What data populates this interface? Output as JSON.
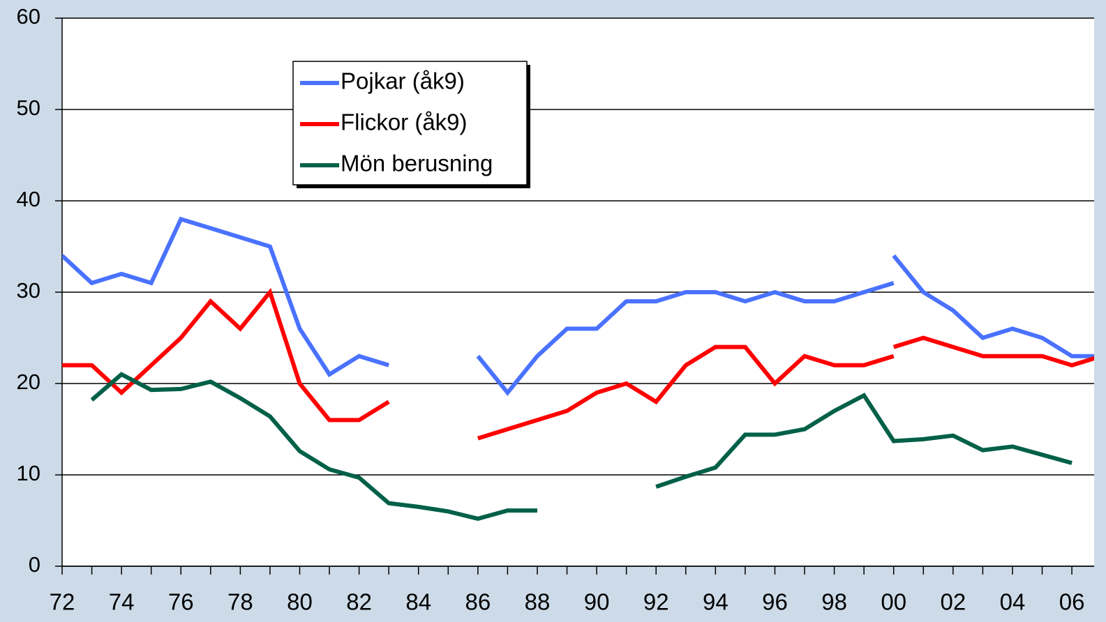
{
  "chart_data": {
    "type": "line",
    "xlim": [
      1972,
      2006.75
    ],
    "ylim": [
      0,
      60
    ],
    "yticks": [
      0,
      10,
      20,
      30,
      40,
      50,
      60
    ],
    "xticks": [
      {
        "value": 1972,
        "label": "72"
      },
      {
        "value": 1974,
        "label": "74"
      },
      {
        "value": 1976,
        "label": "76"
      },
      {
        "value": 1978,
        "label": "78"
      },
      {
        "value": 1980,
        "label": "80"
      },
      {
        "value": 1982,
        "label": "82"
      },
      {
        "value": 1984,
        "label": "84"
      },
      {
        "value": 1986,
        "label": "86"
      },
      {
        "value": 1988,
        "label": "88"
      },
      {
        "value": 1990,
        "label": "90"
      },
      {
        "value": 1992,
        "label": "92"
      },
      {
        "value": 1994,
        "label": "94"
      },
      {
        "value": 1996,
        "label": "96"
      },
      {
        "value": 1998,
        "label": "98"
      },
      {
        "value": 2000,
        "label": "00"
      },
      {
        "value": 2002,
        "label": "02"
      },
      {
        "value": 2004,
        "label": "04"
      },
      {
        "value": 2006,
        "label": "06"
      }
    ],
    "xminor": [
      1973,
      1975,
      1977,
      1979,
      1981,
      1983,
      1985,
      1987,
      1989,
      1991,
      1993,
      1995,
      1997,
      1999,
      2001,
      2003,
      2005
    ],
    "grid": true,
    "series": [
      {
        "name": "Pojkar (åk9)",
        "color": "#4a72ff",
        "x": [
          1972,
          1973,
          1974,
          1975,
          1976,
          1977,
          1978,
          1979,
          1980,
          1981,
          1982,
          1983,
          1984,
          1985,
          1986,
          1987,
          1988,
          1989,
          1990,
          1991,
          1992,
          1993,
          1994,
          1995,
          1996,
          1997,
          1998,
          1999,
          2000,
          2000,
          2000,
          2001,
          2002,
          2003,
          2004,
          2005,
          2006,
          2007
        ],
        "values": [
          34,
          31,
          32,
          31,
          38,
          37,
          36,
          35,
          26,
          21,
          23,
          22,
          null,
          null,
          23,
          19,
          23,
          26,
          26,
          29,
          29,
          30,
          30,
          29,
          30,
          29,
          29,
          30,
          31,
          null,
          34,
          30,
          28,
          25,
          26,
          25,
          23,
          23
        ]
      },
      {
        "name": "Flickor (åk9)",
        "color": "#ff0000",
        "x": [
          1972,
          1973,
          1974,
          1975,
          1976,
          1977,
          1978,
          1979,
          1980,
          1981,
          1982,
          1983,
          1984,
          1985,
          1986,
          1987,
          1988,
          1989,
          1990,
          1991,
          1992,
          1993,
          1994,
          1995,
          1996,
          1997,
          1998,
          1999,
          2000,
          2000,
          2000,
          2001,
          2002,
          2003,
          2004,
          2005,
          2006,
          2007
        ],
        "values": [
          22,
          22,
          19,
          22,
          25,
          29,
          26,
          30,
          20,
          16,
          16,
          18,
          null,
          null,
          14,
          15,
          16,
          17,
          19,
          20,
          18,
          22,
          24,
          24,
          20,
          23,
          22,
          22,
          23,
          null,
          24,
          25,
          24,
          23,
          23,
          23,
          22,
          23
        ]
      },
      {
        "name": "Mön berusning",
        "color": "#006048",
        "x": [
          1973,
          1974,
          1975,
          1976,
          1977,
          1978,
          1979,
          1980,
          1981,
          1982,
          1983,
          1984,
          1985,
          1986,
          1987,
          1988,
          1989,
          1990,
          1991,
          1992,
          1993,
          1994,
          1995,
          1996,
          1997,
          1998,
          1999,
          2000,
          2001,
          2002,
          2003,
          2004,
          2005,
          2006
        ],
        "values": [
          18.2,
          21,
          19.3,
          19.4,
          20.2,
          18.4,
          16.4,
          12.6,
          10.6,
          9.7,
          6.9,
          6.5,
          6,
          5.2,
          6.1,
          6.1,
          null,
          null,
          null,
          8.7,
          9.8,
          10.8,
          14.4,
          14.4,
          15,
          17,
          18.7,
          13.7,
          13.9,
          14.3,
          12.7,
          13.1,
          12.2,
          11.3
        ]
      }
    ]
  }
}
